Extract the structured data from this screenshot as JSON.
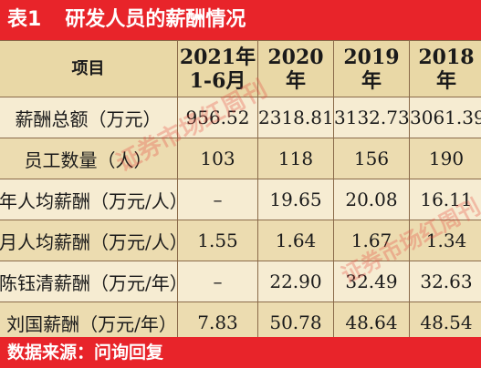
{
  "title": {
    "number": "表1",
    "text": "研发人员的薪酬情况"
  },
  "table": {
    "header": {
      "item": "项目",
      "cols": [
        {
          "line1": "2021年",
          "line2": "1-6月"
        },
        {
          "line1": "2020",
          "line2": "年"
        },
        {
          "line1": "2019",
          "line2": "年"
        },
        {
          "line1": "2018",
          "line2": "年"
        }
      ]
    },
    "rows": [
      {
        "label": "薪酬总额（万元）",
        "values": [
          "956.52",
          "2318.81",
          "3132.73",
          "3061.39"
        ]
      },
      {
        "label": "员工数量（人）",
        "values": [
          "103",
          "118",
          "156",
          "190"
        ]
      },
      {
        "label": "年人均薪酬（万元/人）",
        "values": [
          "–",
          "19.65",
          "20.08",
          "16.11"
        ]
      },
      {
        "label": "月人均薪酬（万元/人）",
        "values": [
          "1.55",
          "1.64",
          "1.67",
          "1.34"
        ]
      },
      {
        "label": "陈钰清薪酬（万元/年）",
        "values": [
          "–",
          "22.90",
          "32.49",
          "32.63"
        ]
      },
      {
        "label": "刘国薪酬（万元/年）",
        "values": [
          "7.83",
          "50.78",
          "48.64",
          "48.54"
        ]
      }
    ]
  },
  "watermark": {
    "text": "证券市场红周刊"
  },
  "source": "数据来源：问询回复",
  "colors": {
    "accent": "#e8242a",
    "header_bg": "#e9d8a6",
    "row_bg": "#f6ecd2",
    "row_alt_bg": "#ecdcb0"
  }
}
